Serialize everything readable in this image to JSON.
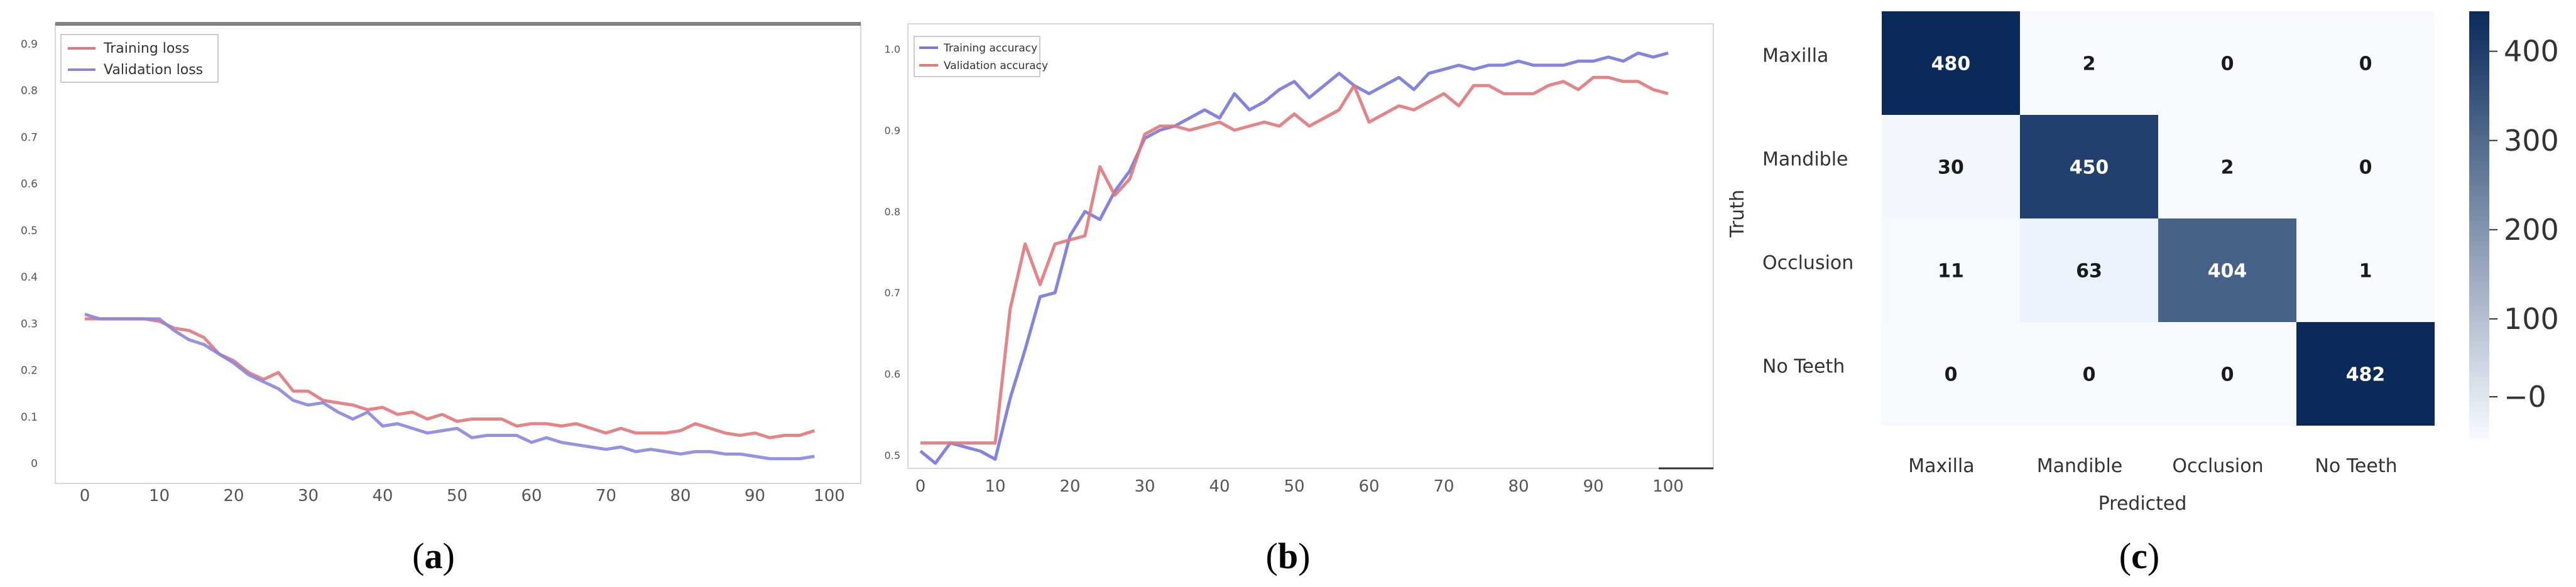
{
  "figure": {
    "captions": [
      "(a)",
      "(b)",
      "(c)"
    ],
    "caption_letters": [
      "a",
      "b",
      "c"
    ]
  },
  "chart_data": [
    {
      "type": "line",
      "caption": "(a)",
      "xlim": [
        0,
        100
      ],
      "ylim": [
        0,
        0.9
      ],
      "x_ticks": [
        0,
        10,
        20,
        30,
        40,
        50,
        60,
        70,
        80,
        90,
        100
      ],
      "y_ticks": [
        0,
        0.1,
        0.2,
        0.3,
        0.4,
        0.5,
        0.6,
        0.7,
        0.8,
        0.9
      ],
      "legend_placement": "top-left",
      "series": [
        {
          "name": "Training loss",
          "color": "#e0777b",
          "x": [
            0,
            2,
            4,
            6,
            8,
            10,
            12,
            14,
            16,
            18,
            20,
            22,
            24,
            26,
            28,
            30,
            32,
            34,
            36,
            38,
            40,
            42,
            44,
            46,
            48,
            50,
            52,
            54,
            56,
            58,
            60,
            62,
            64,
            66,
            68,
            70,
            72,
            74,
            76,
            78,
            80,
            82,
            84,
            86,
            88,
            90,
            92,
            94,
            96,
            98
          ],
          "y": [
            0.31,
            0.31,
            0.31,
            0.31,
            0.31,
            0.305,
            0.29,
            0.285,
            0.27,
            0.235,
            0.22,
            0.195,
            0.18,
            0.195,
            0.155,
            0.155,
            0.135,
            0.13,
            0.125,
            0.115,
            0.12,
            0.105,
            0.11,
            0.095,
            0.105,
            0.09,
            0.095,
            0.095,
            0.095,
            0.08,
            0.085,
            0.085,
            0.08,
            0.085,
            0.075,
            0.065,
            0.075,
            0.065,
            0.065,
            0.065,
            0.07,
            0.085,
            0.075,
            0.065,
            0.06,
            0.065,
            0.055,
            0.06,
            0.06,
            0.07
          ]
        },
        {
          "name": "Validation loss",
          "color": "#8a86de",
          "x": [
            0,
            2,
            4,
            6,
            8,
            10,
            12,
            14,
            16,
            18,
            20,
            22,
            24,
            26,
            28,
            30,
            32,
            34,
            36,
            38,
            40,
            42,
            44,
            46,
            48,
            50,
            52,
            54,
            56,
            58,
            60,
            62,
            64,
            66,
            68,
            70,
            72,
            74,
            76,
            78,
            80,
            82,
            84,
            86,
            88,
            90,
            92,
            94,
            96,
            98
          ],
          "y": [
            0.32,
            0.31,
            0.31,
            0.31,
            0.31,
            0.31,
            0.285,
            0.265,
            0.255,
            0.235,
            0.215,
            0.19,
            0.175,
            0.16,
            0.135,
            0.125,
            0.13,
            0.11,
            0.095,
            0.11,
            0.08,
            0.085,
            0.075,
            0.065,
            0.07,
            0.075,
            0.055,
            0.06,
            0.06,
            0.06,
            0.045,
            0.055,
            0.045,
            0.04,
            0.035,
            0.03,
            0.035,
            0.025,
            0.03,
            0.025,
            0.02,
            0.025,
            0.025,
            0.02,
            0.02,
            0.015,
            0.01,
            0.01,
            0.01,
            0.015
          ]
        }
      ]
    },
    {
      "type": "line",
      "caption": "(b)",
      "xlim": [
        0,
        100
      ],
      "ylim": [
        0.5,
        1.0
      ],
      "x_ticks": [
        0,
        10,
        20,
        30,
        40,
        50,
        60,
        70,
        80,
        90,
        100
      ],
      "y_ticks": [
        0.5,
        0.6,
        0.7,
        0.8,
        0.9,
        1.0
      ],
      "y_tick_labels": [
        "0.5",
        "0.6",
        "0.7",
        "0.8",
        "0.9",
        "1.0"
      ],
      "legend_placement": "top-left",
      "series": [
        {
          "name": "Training accuracy",
          "color": "#7777dd",
          "x": [
            0,
            2,
            4,
            6,
            8,
            10,
            12,
            14,
            16,
            18,
            20,
            22,
            24,
            26,
            28,
            30,
            32,
            34,
            36,
            38,
            40,
            42,
            44,
            46,
            48,
            50,
            52,
            54,
            56,
            58,
            60,
            62,
            64,
            66,
            68,
            70,
            72,
            74,
            76,
            78,
            80,
            82,
            84,
            86,
            88,
            90,
            92,
            94,
            96,
            98,
            100
          ],
          "y": [
            0.505,
            0.49,
            0.515,
            0.51,
            0.505,
            0.495,
            0.57,
            0.63,
            0.695,
            0.7,
            0.77,
            0.8,
            0.79,
            0.825,
            0.85,
            0.89,
            0.9,
            0.905,
            0.915,
            0.925,
            0.915,
            0.945,
            0.925,
            0.935,
            0.95,
            0.96,
            0.94,
            0.955,
            0.97,
            0.955,
            0.945,
            0.955,
            0.965,
            0.95,
            0.97,
            0.975,
            0.98,
            0.975,
            0.98,
            0.98,
            0.985,
            0.98,
            0.98,
            0.98,
            0.985,
            0.985,
            0.99,
            0.985,
            0.995,
            0.99,
            0.995
          ]
        },
        {
          "name": "Validation accuracy",
          "color": "#e0777b",
          "x": [
            0,
            2,
            4,
            6,
            8,
            10,
            12,
            14,
            16,
            18,
            20,
            22,
            24,
            26,
            28,
            30,
            32,
            34,
            36,
            38,
            40,
            42,
            44,
            46,
            48,
            50,
            52,
            54,
            56,
            58,
            60,
            62,
            64,
            66,
            68,
            70,
            72,
            74,
            76,
            78,
            80,
            82,
            84,
            86,
            88,
            90,
            92,
            94,
            96,
            98,
            100
          ],
          "y": [
            0.515,
            0.515,
            0.515,
            0.515,
            0.515,
            0.515,
            0.68,
            0.76,
            0.71,
            0.76,
            0.765,
            0.77,
            0.855,
            0.82,
            0.84,
            0.895,
            0.905,
            0.905,
            0.9,
            0.905,
            0.91,
            0.9,
            0.905,
            0.91,
            0.905,
            0.92,
            0.905,
            0.915,
            0.925,
            0.955,
            0.91,
            0.92,
            0.93,
            0.925,
            0.935,
            0.945,
            0.93,
            0.955,
            0.955,
            0.945,
            0.945,
            0.945,
            0.955,
            0.96,
            0.95,
            0.965,
            0.965,
            0.96,
            0.96,
            0.95,
            0.945
          ]
        }
      ]
    },
    {
      "type": "heatmap",
      "caption": "(c)",
      "xlabel": "Predicted",
      "ylabel": "Truth",
      "x_categories": [
        "Maxilla",
        "Mandible",
        "Occlusion",
        "No Teeth"
      ],
      "y_categories": [
        "Maxilla",
        "Mandible",
        "Occlusion",
        "No Teeth"
      ],
      "matrix": [
        [
          480,
          2,
          0,
          0
        ],
        [
          30,
          450,
          2,
          0
        ],
        [
          11,
          63,
          404,
          1
        ],
        [
          0,
          0,
          0,
          482
        ]
      ],
      "colorbar": {
        "ticks": [
          0,
          100,
          200,
          300,
          400
        ],
        "tick_labels": [
          "0",
          "100",
          "200",
          "300",
          "400"
        ],
        "low_color": "#f7fbff",
        "high_color": "#0a2a5a"
      }
    }
  ]
}
